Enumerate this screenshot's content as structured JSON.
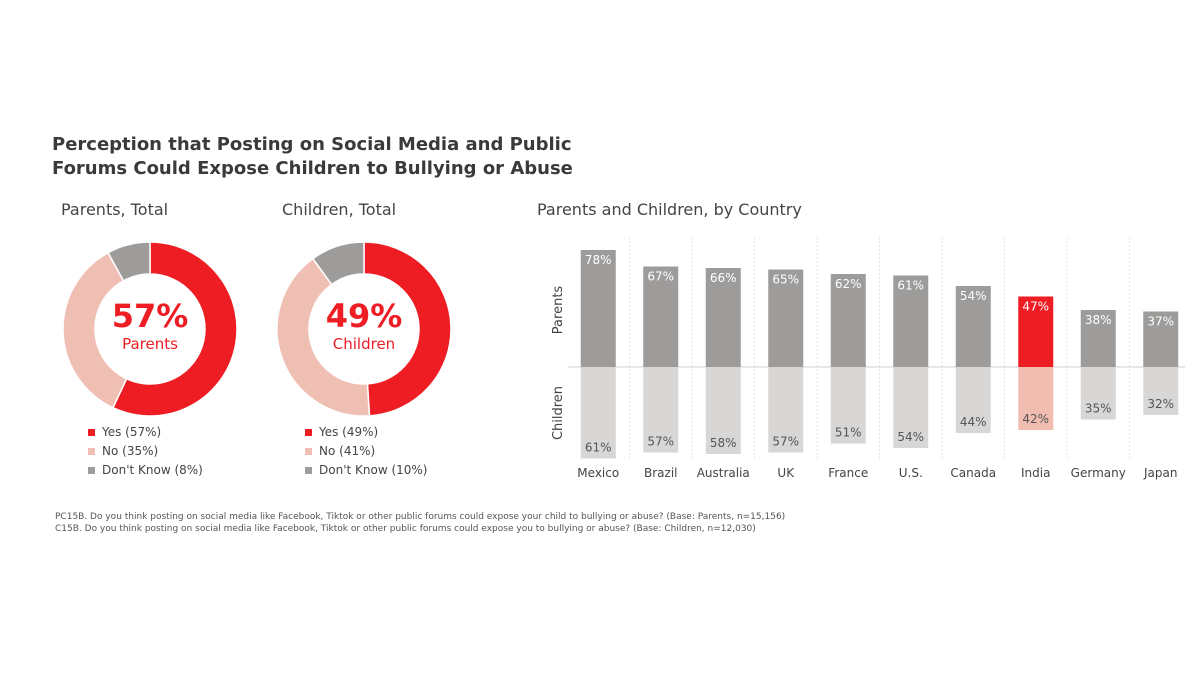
{
  "title_line1": "Perception that Posting on Social Media and Public",
  "title_line2": "Forums Could Expose Children to Bullying or Abuse",
  "colors": {
    "red": "#ee1d24",
    "light_red": "#f0bfb3",
    "gray": "#9e9c9a",
    "light_gray": "#d9d7d6",
    "pink_bar": "#f1bdb1"
  },
  "chart_data": [
    {
      "type": "pie",
      "subtitle": "Parents, Total",
      "center_value": "57%",
      "center_label": "Parents",
      "slices": [
        {
          "name": "Yes",
          "value": 57,
          "legend": "Yes (57%)"
        },
        {
          "name": "No",
          "value": 35,
          "legend": "No (35%)"
        },
        {
          "name": "Don't Know",
          "value": 8,
          "legend": "Don't Know (8%)"
        }
      ]
    },
    {
      "type": "pie",
      "subtitle": "Children, Total",
      "center_value": "49%",
      "center_label": "Children",
      "slices": [
        {
          "name": "Yes",
          "value": 49,
          "legend": "Yes (49%)"
        },
        {
          "name": "No",
          "value": 41,
          "legend": "No (41%)"
        },
        {
          "name": "Don't Know",
          "value": 10,
          "legend": "Don't Know (10%)"
        }
      ]
    },
    {
      "type": "bar",
      "subtitle": "Parents and Children, by Country",
      "categories": [
        "Mexico",
        "Brazil",
        "Australia",
        "UK",
        "France",
        "U.S.",
        "Canada",
        "India",
        "Germany",
        "Japan"
      ],
      "highlight": "India",
      "series": [
        {
          "name": "Parents",
          "values": [
            78,
            67,
            66,
            65,
            62,
            61,
            54,
            47,
            38,
            37
          ]
        },
        {
          "name": "Children",
          "values": [
            61,
            57,
            58,
            57,
            51,
            54,
            44,
            42,
            35,
            32
          ]
        }
      ]
    }
  ],
  "footnotes": [
    "PC15B. Do you think posting on social media like Facebook, Tiktok or other public forums could expose your child to bullying or abuse? (Base: Parents, n=15,156)",
    "C15B. Do you think posting on social media like Facebook, Tiktok or other public forums could expose you to bullying or abuse? (Base: Children, n=12,030)"
  ]
}
